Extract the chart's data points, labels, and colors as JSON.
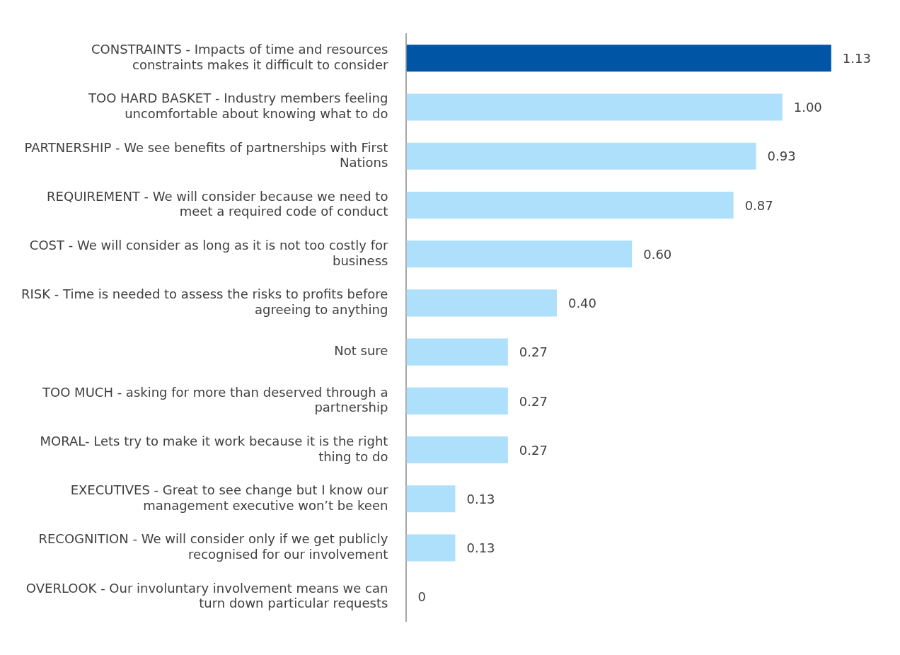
{
  "chart_data": {
    "type": "bar",
    "orientation": "horizontal",
    "categories": [
      "CONSTRAINTS - Impacts of time and resources constraints makes it difficult to consider",
      "TOO HARD BASKET - Industry members feeling uncomfortable about knowing what to do",
      "PARTNERSHIP - We see benefits of partnerships with First Nations",
      "REQUIREMENT - We will consider because we need to meet a required code of conduct",
      "COST - We will consider as long as it is not too costly for business",
      "RISK - Time is needed to assess the risks to profits before agreeing to anything",
      "Not sure",
      "TOO MUCH - asking for more than deserved through a partnership",
      "MORAL- Lets try to make it work because it is the right thing to do",
      "EXECUTIVES - Great to see change but I know our management executive won’t be keen",
      "RECOGNITION - We will consider only if we get publicly recognised for our involvement",
      "OVERLOOK - Our involuntary involvement means we can turn down particular requests"
    ],
    "values": [
      1.13,
      1.0,
      0.93,
      0.87,
      0.6,
      0.4,
      0.27,
      0.27,
      0.27,
      0.13,
      0.13,
      0
    ],
    "value_labels": [
      "1.13",
      "1.00",
      "0.93",
      "0.87",
      "0.60",
      "0.40",
      "0.27",
      "0.27",
      "0.27",
      "0.13",
      "0.13",
      "0"
    ],
    "colors": [
      "#0055a5",
      "#aee0fb",
      "#aee0fb",
      "#aee0fb",
      "#aee0fb",
      "#aee0fb",
      "#aee0fb",
      "#aee0fb",
      "#aee0fb",
      "#aee0fb",
      "#aee0fb",
      "#aee0fb"
    ],
    "grid": false
  }
}
